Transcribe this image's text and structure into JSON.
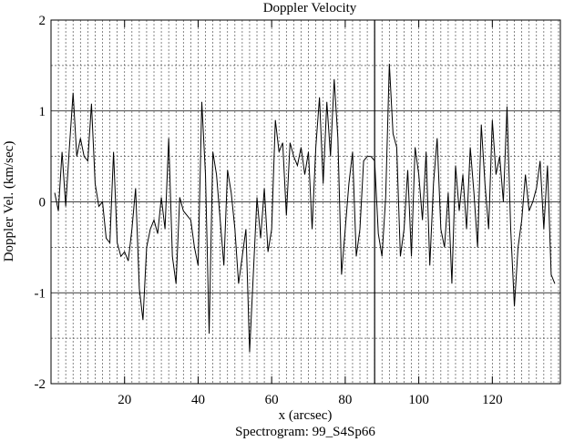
{
  "chart_data": {
    "type": "line",
    "title": "Doppler Velocity",
    "xlabel": "x (arcsec)",
    "ylabel": "Doppler Vel. (km/sec)",
    "subtitle": "Spectrogram: 99_S4Sp66",
    "x": [
      1,
      2,
      3,
      4,
      5,
      6,
      7,
      8,
      9,
      10,
      11,
      12,
      13,
      14,
      15,
      16,
      17,
      18,
      19,
      20,
      21,
      22,
      23,
      24,
      25,
      26,
      27,
      28,
      29,
      30,
      31,
      32,
      33,
      34,
      35,
      36,
      37,
      38,
      39,
      40,
      41,
      42,
      43,
      44,
      45,
      46,
      47,
      48,
      49,
      50,
      51,
      52,
      53,
      54,
      55,
      56,
      57,
      58,
      59,
      60,
      61,
      62,
      63,
      64,
      65,
      66,
      67,
      68,
      69,
      70,
      71,
      72,
      73,
      74,
      75,
      76,
      77,
      78,
      79,
      80,
      81,
      82,
      83,
      84,
      85,
      86,
      87,
      88,
      89,
      90,
      91,
      92,
      93,
      94,
      95,
      96,
      97,
      98,
      99,
      100,
      101,
      102,
      103,
      104,
      105,
      106,
      107,
      108,
      109,
      110,
      111,
      112,
      113,
      114,
      115,
      116,
      117,
      118,
      119,
      120,
      121,
      122,
      123,
      124,
      125,
      126,
      127,
      128,
      129,
      130,
      131,
      132,
      133,
      134,
      135,
      136,
      137
    ],
    "values": [
      0.1,
      -0.1,
      0.55,
      -0.05,
      0.6,
      1.2,
      0.5,
      0.7,
      0.5,
      0.45,
      1.08,
      0.2,
      -0.05,
      0.0,
      -0.4,
      -0.45,
      0.55,
      -0.45,
      -0.6,
      -0.55,
      -0.65,
      -0.3,
      0.15,
      -0.95,
      -1.3,
      -0.5,
      -0.3,
      -0.2,
      -0.35,
      0.05,
      -0.3,
      0.7,
      -0.6,
      -0.9,
      0.05,
      -0.1,
      -0.15,
      -0.2,
      -0.5,
      -0.7,
      1.1,
      0.3,
      -1.45,
      0.55,
      0.3,
      -0.2,
      -0.7,
      0.35,
      0.1,
      -0.3,
      -0.9,
      -0.6,
      -0.3,
      -1.65,
      -0.8,
      0.05,
      -0.4,
      0.15,
      -0.55,
      -0.3,
      0.9,
      0.55,
      0.65,
      -0.15,
      0.65,
      0.5,
      0.4,
      0.6,
      0.3,
      0.55,
      -0.3,
      0.6,
      1.15,
      0.2,
      1.1,
      0.5,
      1.35,
      0.7,
      -0.8,
      -0.3,
      0.2,
      0.55,
      -0.6,
      -0.3,
      0.45,
      0.5,
      0.5,
      0.45,
      -0.35,
      -0.6,
      0.05,
      1.52,
      0.75,
      0.6,
      -0.6,
      -0.3,
      0.35,
      -0.6,
      0.6,
      0.3,
      -0.2,
      0.55,
      -0.7,
      0.2,
      0.7,
      -0.3,
      -0.5,
      0.1,
      -0.9,
      0.4,
      -0.1,
      0.3,
      -0.3,
      0.6,
      0.1,
      -0.5,
      0.85,
      0.2,
      -0.3,
      0.9,
      0.3,
      0.5,
      0.0,
      1.05,
      -0.3,
      -1.15,
      -0.5,
      -0.2,
      0.3,
      -0.1,
      0.0,
      0.15,
      0.45,
      -0.3,
      0.4,
      -0.8,
      -0.9
    ],
    "color": "#000000",
    "xlim": [
      0,
      138.5
    ],
    "ylim": [
      -2,
      2
    ],
    "xticks": [
      20,
      40,
      60,
      80,
      100,
      120
    ],
    "yticks": [
      -2,
      -1,
      0,
      1,
      2
    ],
    "ygrid": [
      -1.5,
      -0.5,
      0.5,
      1.5
    ],
    "xgrid": [
      2,
      4,
      6,
      8,
      10,
      12,
      14,
      16,
      18,
      20,
      22,
      24,
      26,
      28,
      30,
      32,
      34,
      36,
      38,
      40,
      42,
      44,
      46,
      48,
      50,
      52,
      54,
      56,
      58,
      60,
      62,
      64,
      66,
      68,
      70,
      72,
      74,
      76,
      78,
      80,
      82,
      84,
      86,
      88,
      90,
      92,
      94,
      96,
      98,
      100,
      102,
      104,
      106,
      108,
      110,
      112,
      114,
      116,
      118,
      120,
      122,
      124,
      126,
      128,
      130,
      132,
      134,
      136,
      138
    ],
    "marker_x": 88,
    "grid": true
  }
}
